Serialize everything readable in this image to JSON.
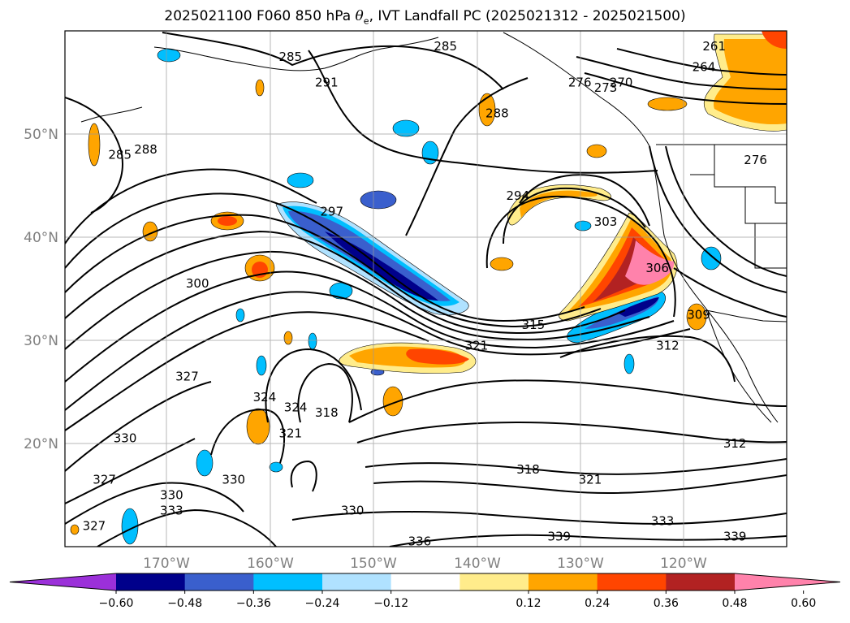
{
  "title": {
    "prefix": "2025021100 F060 850 hPa ",
    "symbol": "θ",
    "subscript": "e",
    "suffix": ", IVT Landfall PC (2025021312 - 2025021500)"
  },
  "map": {
    "lon_ticks": [
      "170°W",
      "160°W",
      "150°W",
      "140°W",
      "130°W",
      "120°W"
    ],
    "lat_ticks": [
      "50°N",
      "40°N",
      "30°N",
      "20°N"
    ],
    "grid": true
  },
  "colorbar": {
    "ticks": [
      "−0.60",
      "−0.48",
      "−0.36",
      "−0.24",
      "−0.12",
      "0.12",
      "0.24",
      "0.36",
      "0.48",
      "0.60"
    ],
    "colors": [
      "#9b30d9",
      "#00008b",
      "#3a5fcd",
      "#00bfff",
      "#b0e2ff",
      "#ffffff",
      "#ffec8b",
      "#ffa500",
      "#ff4500",
      "#b22222",
      "#ff82ab"
    ],
    "extend": "both"
  },
  "contour_labels": [
    {
      "text": "285",
      "lon": -174.5,
      "lat": 48.0
    },
    {
      "text": "288",
      "lon": -172.0,
      "lat": 48.5
    },
    {
      "text": "285",
      "lon": -158.0,
      "lat": 57.5
    },
    {
      "text": "291",
      "lon": -154.5,
      "lat": 55.0
    },
    {
      "text": "285",
      "lon": -143.0,
      "lat": 58.5
    },
    {
      "text": "288",
      "lon": -138.0,
      "lat": 52.0
    },
    {
      "text": "294",
      "lon": -136.0,
      "lat": 44.0
    },
    {
      "text": "297",
      "lon": -154.0,
      "lat": 42.5
    },
    {
      "text": "300",
      "lon": -167.0,
      "lat": 35.5
    },
    {
      "text": "303",
      "lon": -127.5,
      "lat": 41.5
    },
    {
      "text": "306",
      "lon": -122.5,
      "lat": 37.0
    },
    {
      "text": "309",
      "lon": -118.5,
      "lat": 32.5
    },
    {
      "text": "312",
      "lon": -121.5,
      "lat": 29.5
    },
    {
      "text": "315",
      "lon": -134.5,
      "lat": 31.5
    },
    {
      "text": "321",
      "lon": -140.0,
      "lat": 29.5
    },
    {
      "text": "327",
      "lon": -168.0,
      "lat": 26.5
    },
    {
      "text": "324",
      "lon": -160.5,
      "lat": 24.5
    },
    {
      "text": "324",
      "lon": -157.5,
      "lat": 23.5
    },
    {
      "text": "318",
      "lon": -154.5,
      "lat": 23.0
    },
    {
      "text": "321",
      "lon": -158.0,
      "lat": 21.0
    },
    {
      "text": "330",
      "lon": -174.0,
      "lat": 20.5
    },
    {
      "text": "330",
      "lon": -163.5,
      "lat": 16.5
    },
    {
      "text": "327",
      "lon": -176.0,
      "lat": 16.5
    },
    {
      "text": "330",
      "lon": -169.5,
      "lat": 15.0
    },
    {
      "text": "333",
      "lon": -169.5,
      "lat": 13.5
    },
    {
      "text": "327",
      "lon": -177.0,
      "lat": 12.0
    },
    {
      "text": "330",
      "lon": -152.0,
      "lat": 13.5
    },
    {
      "text": "336",
      "lon": -145.5,
      "lat": 10.5
    },
    {
      "text": "318",
      "lon": -135.0,
      "lat": 17.5
    },
    {
      "text": "321",
      "lon": -129.0,
      "lat": 16.5
    },
    {
      "text": "333",
      "lon": -122.0,
      "lat": 12.5
    },
    {
      "text": "339",
      "lon": -132.0,
      "lat": 11.0
    },
    {
      "text": "339",
      "lon": -115.0,
      "lat": 11.0
    },
    {
      "text": "312",
      "lon": -115.0,
      "lat": 20.0
    },
    {
      "text": "261",
      "lon": -117.0,
      "lat": 58.5
    },
    {
      "text": "264",
      "lon": -118.0,
      "lat": 56.5
    },
    {
      "text": "270",
      "lon": -126.0,
      "lat": 55.0
    },
    {
      "text": "273",
      "lon": -127.5,
      "lat": 54.5
    },
    {
      "text": "276",
      "lon": -130.0,
      "lat": 55.0
    },
    {
      "text": "276",
      "lon": -113.0,
      "lat": 47.5
    }
  ]
}
